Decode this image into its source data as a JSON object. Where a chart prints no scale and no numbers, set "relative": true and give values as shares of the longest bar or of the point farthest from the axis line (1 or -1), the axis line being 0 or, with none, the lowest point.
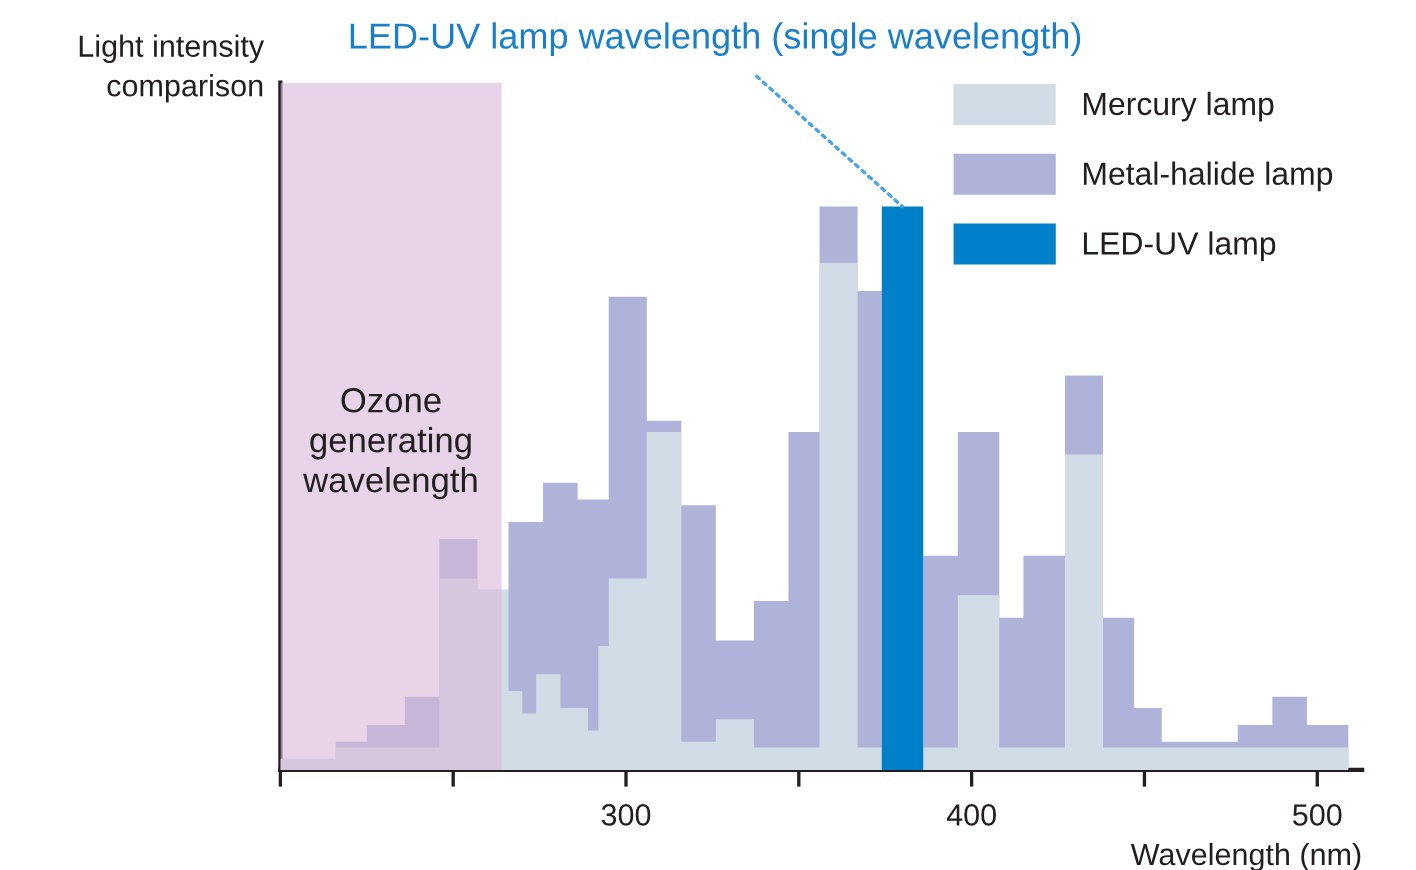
{
  "chart_data": {
    "type": "area",
    "relative": true,
    "xlabel": "Wavelength (nm)",
    "ylabel": "Light intensity comparison",
    "xlim": [
      200,
      513
    ],
    "xticks": [
      {
        "value": 200,
        "label": null
      },
      {
        "value": 250,
        "label": null
      },
      300,
      {
        "value": 350,
        "label": null
      },
      400,
      {
        "value": 450,
        "label": null
      },
      500
    ],
    "legend": "top right",
    "grid": false,
    "series": [
      {
        "name": "Mercury lamp",
        "color": "#d2dce6",
        "x": [
          200,
          200,
          216,
          216,
          246,
          246,
          257,
          257,
          266,
          266,
          270,
          270,
          274,
          274,
          281,
          281,
          289,
          289,
          292,
          292,
          295,
          295,
          306,
          306,
          316,
          316,
          326,
          326,
          337,
          337,
          356,
          356,
          367,
          367,
          396,
          396,
          408,
          408,
          427,
          427,
          438,
          438,
          509,
          509
        ],
        "values": [
          0,
          0.02,
          0.02,
          0.04,
          0.04,
          0.34,
          0.34,
          0.32,
          0.32,
          0.14,
          0.14,
          0.1,
          0.1,
          0.17,
          0.17,
          0.11,
          0.11,
          0.07,
          0.07,
          0.22,
          0.22,
          0.34,
          0.34,
          0.6,
          0.6,
          0.05,
          0.05,
          0.09,
          0.09,
          0.04,
          0.04,
          0.9,
          0.9,
          0.04,
          0.04,
          0.31,
          0.31,
          0.04,
          0.04,
          0.56,
          0.56,
          0.04,
          0.04,
          0
        ]
      },
      {
        "name": "Metal-halide lamp",
        "color": "#b0b3d9",
        "x": [
          216,
          216,
          225,
          225,
          236,
          236,
          246,
          246,
          257,
          257,
          266,
          266,
          276,
          276,
          286,
          286,
          295,
          295,
          306,
          306,
          316,
          316,
          326,
          326,
          337,
          337,
          347,
          347,
          356,
          356,
          367,
          367,
          374,
          374,
          386,
          386,
          396,
          396,
          408,
          408,
          415,
          415,
          427,
          427,
          438,
          438,
          447,
          447,
          455,
          455,
          477,
          477,
          487,
          487,
          497,
          497,
          509,
          509
        ],
        "values": [
          0,
          0.05,
          0.05,
          0.08,
          0.08,
          0.13,
          0.13,
          0.41,
          0.41,
          0.32,
          0.32,
          0.44,
          0.44,
          0.51,
          0.51,
          0.48,
          0.48,
          0.84,
          0.84,
          0.62,
          0.62,
          0.47,
          0.47,
          0.23,
          0.23,
          0.3,
          0.3,
          0.6,
          0.6,
          1.0,
          1.0,
          0.85,
          0.85,
          0,
          0,
          0.38,
          0.38,
          0.6,
          0.6,
          0.27,
          0.27,
          0.38,
          0.38,
          0.7,
          0.7,
          0.27,
          0.27,
          0.11,
          0.11,
          0.05,
          0.05,
          0.08,
          0.08,
          0.13,
          0.13,
          0.08,
          0.08,
          0
        ]
      },
      {
        "name": "LED-UV lamp",
        "color": "#0080c8",
        "x": [
          374,
          374,
          386,
          386
        ],
        "values": [
          0,
          1.0,
          1.0,
          0
        ]
      }
    ],
    "bands": [
      {
        "axis": "x",
        "from": 200,
        "to": 264,
        "label": "Ozone generating wavelength",
        "color": "#d8b8d8"
      }
    ],
    "annotations": [
      {
        "text": "LED-UV lamp wavelength (single wavelength)",
        "x": 380,
        "y": 1.0
      }
    ]
  }
}
